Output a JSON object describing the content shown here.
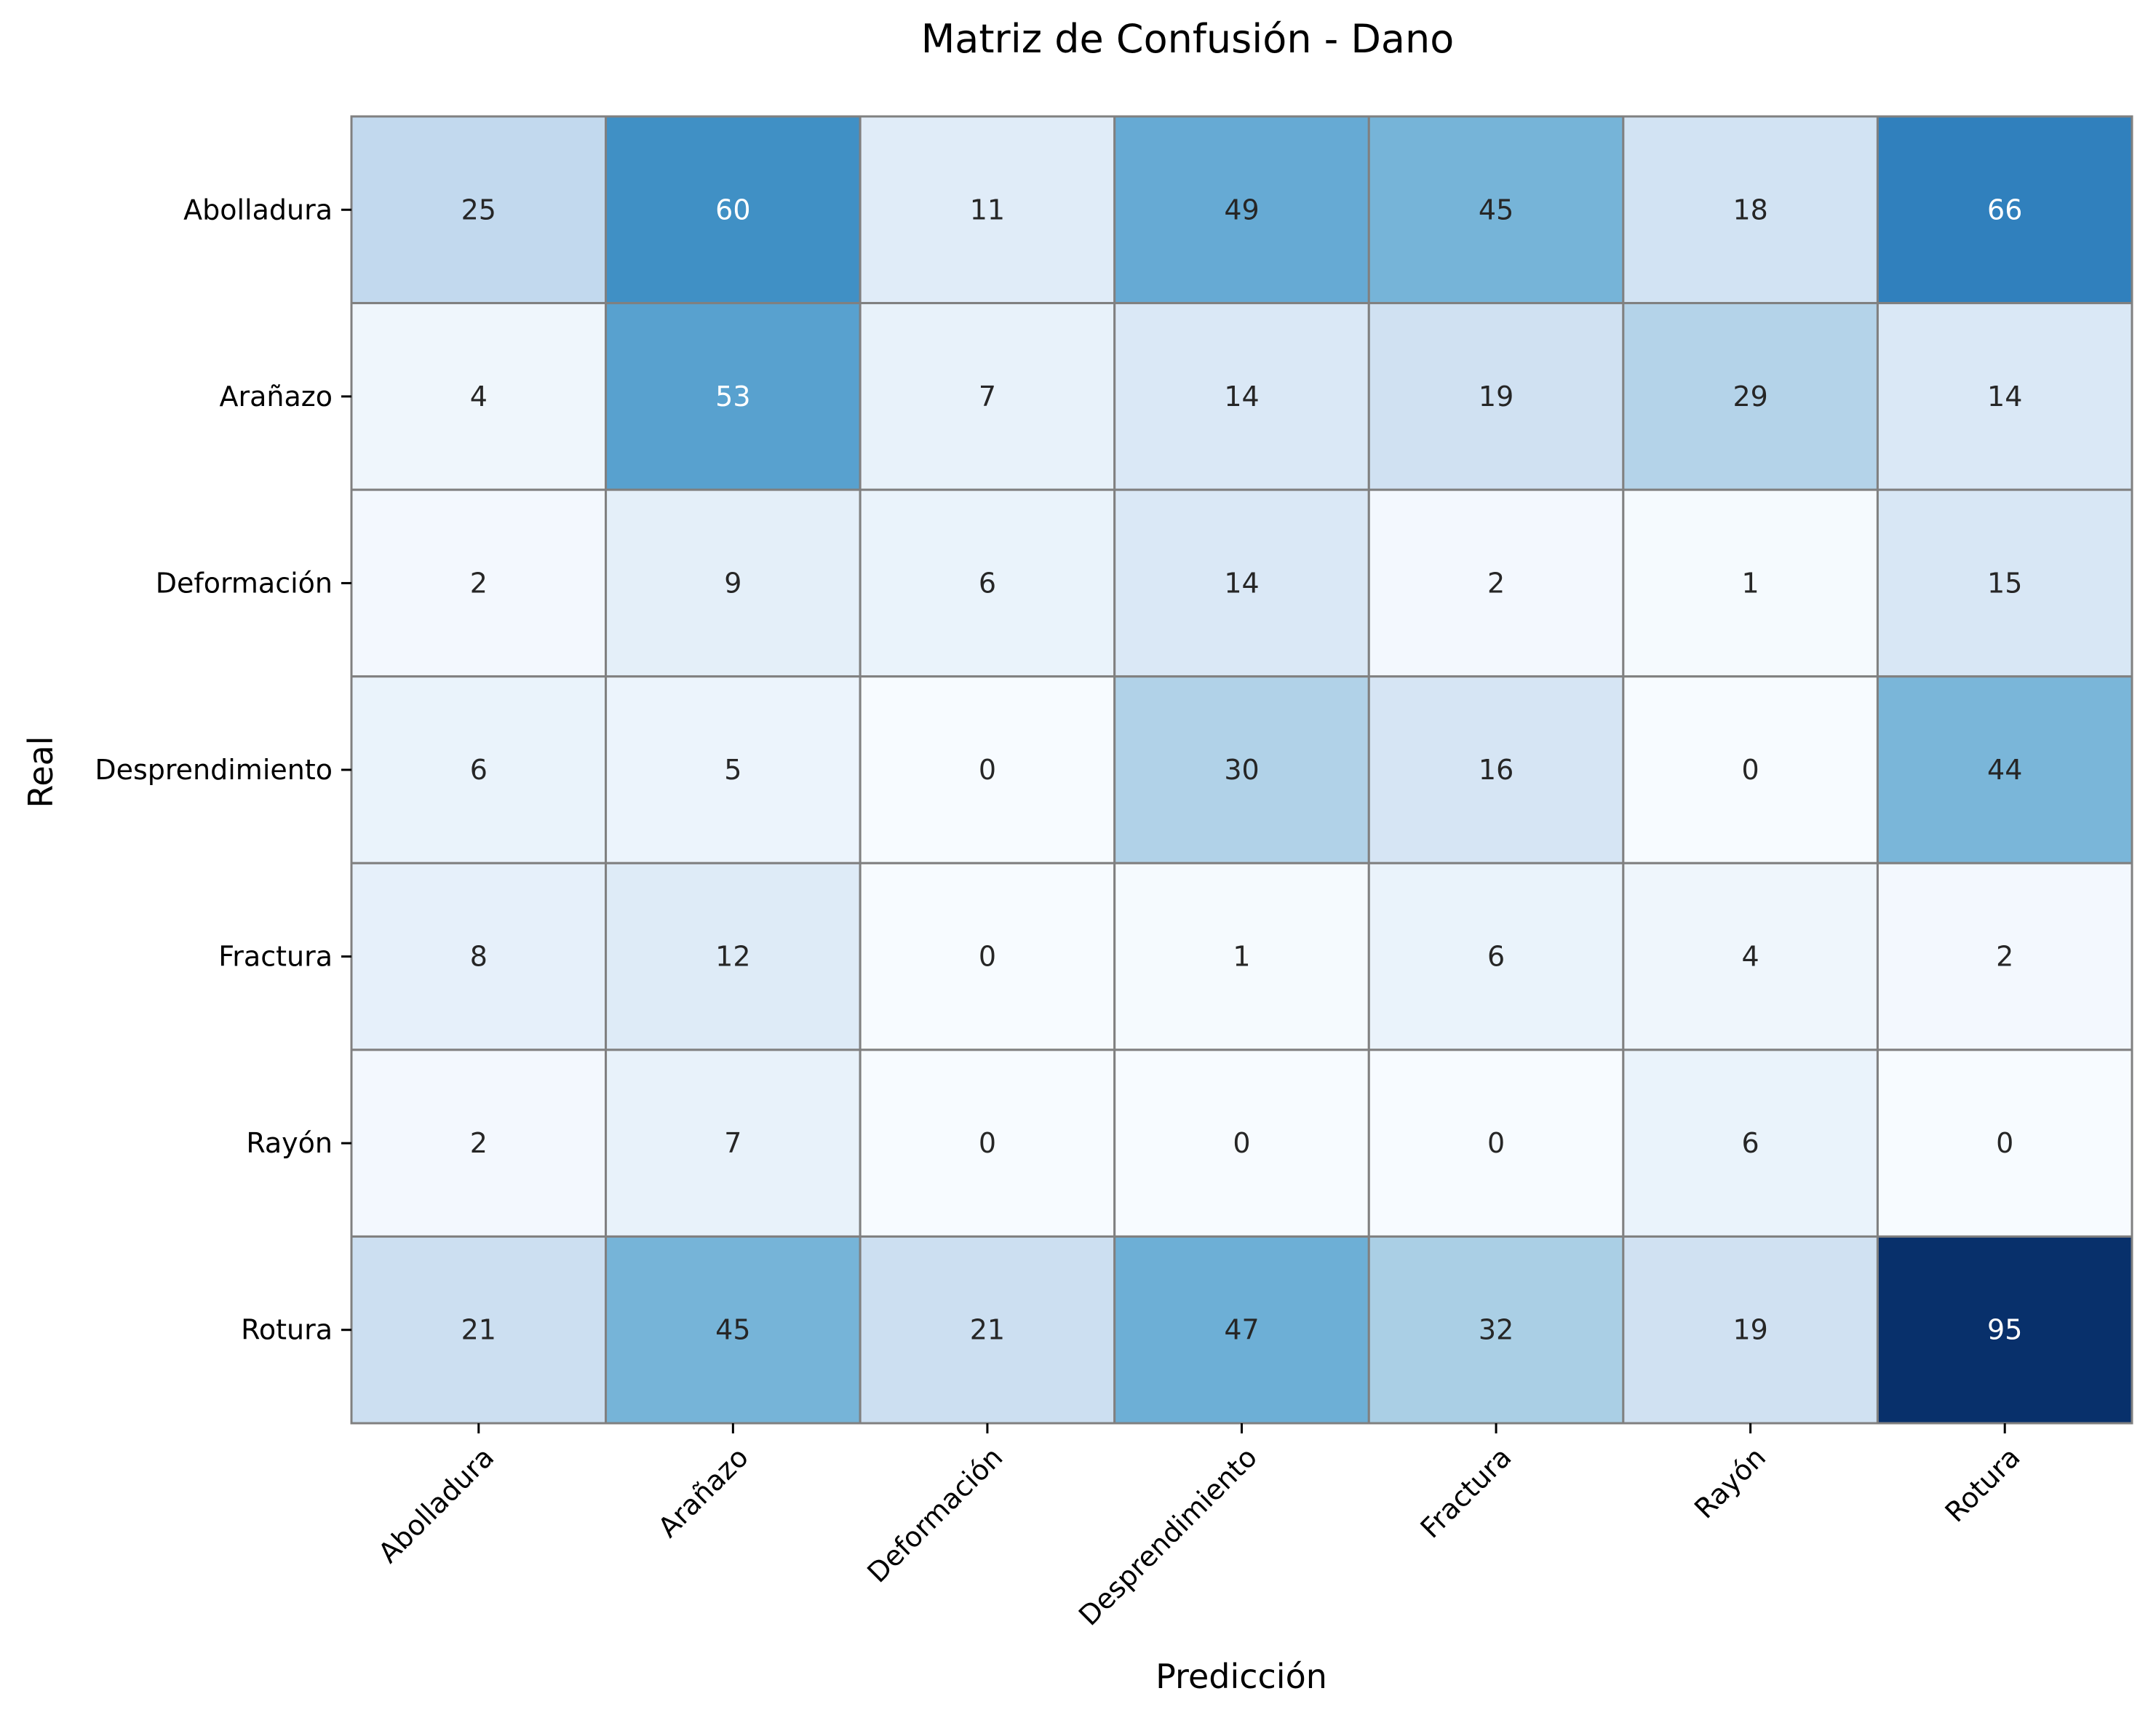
{
  "chart_data": {
    "type": "heatmap",
    "title": "Matriz de Confusión - Dano",
    "xlabel": "Predicción",
    "ylabel": "Real",
    "x_categories": [
      "Abolladura",
      "Arañazo",
      "Deformación",
      "Desprendimiento",
      "Fractura",
      "Rayón",
      "Rotura"
    ],
    "y_categories": [
      "Abolladura",
      "Arañazo",
      "Deformación",
      "Desprendimiento",
      "Fractura",
      "Rayón",
      "Rotura"
    ],
    "values": [
      [
        25,
        60,
        11,
        49,
        45,
        18,
        66
      ],
      [
        4,
        53,
        7,
        14,
        19,
        29,
        14
      ],
      [
        2,
        9,
        6,
        14,
        2,
        1,
        15
      ],
      [
        6,
        5,
        0,
        30,
        16,
        0,
        44
      ],
      [
        8,
        12,
        0,
        1,
        6,
        4,
        2
      ],
      [
        2,
        7,
        0,
        0,
        0,
        6,
        0
      ],
      [
        21,
        45,
        21,
        47,
        32,
        19,
        95
      ]
    ],
    "colormap": "Blues",
    "value_range": [
      0,
      95
    ],
    "grid": true,
    "cell_border_color": "#808080",
    "colorbar": false
  }
}
